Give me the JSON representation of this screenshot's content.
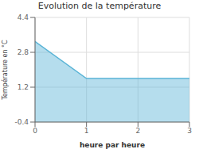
{
  "chart_data": {
    "type": "area",
    "title": "Evolution de la température",
    "xlabel": "heure par heure",
    "ylabel": "Température en °C",
    "x": [
      0,
      1,
      3
    ],
    "values": [
      3.3,
      1.6,
      1.6
    ],
    "color": "#5ab4d6",
    "xlim": [
      0,
      3
    ],
    "ylim": [
      -0.4,
      4.4
    ],
    "xticks": [
      0,
      1,
      2,
      3
    ],
    "yticks": [
      -0.4,
      1.2,
      2.8,
      4.4
    ],
    "grid": true
  }
}
